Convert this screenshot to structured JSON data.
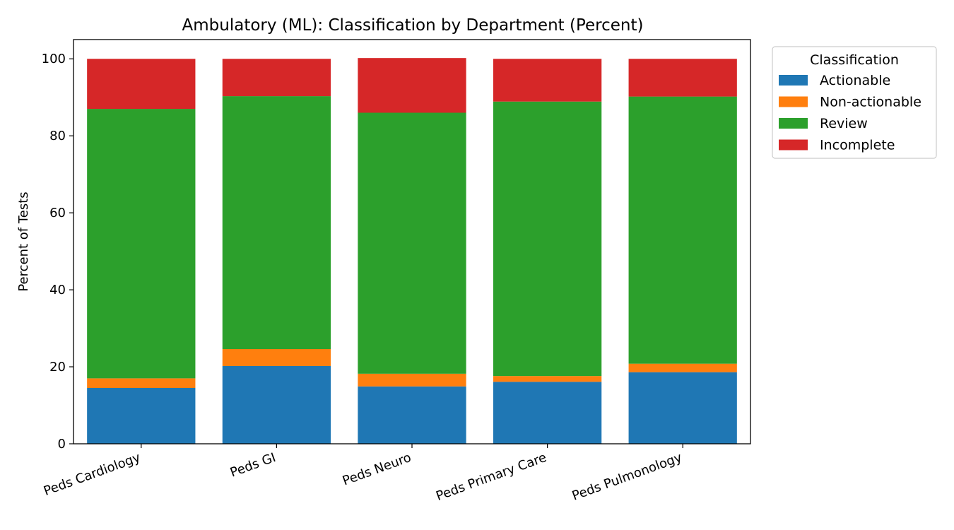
{
  "chart_data": {
    "type": "bar",
    "stacked": true,
    "title": "Ambulatory (ML): Classification by Department (Percent)",
    "xlabel": "",
    "ylabel": "Percent of Tests",
    "ylim": [
      0,
      105
    ],
    "yticks": [
      0,
      20,
      40,
      60,
      80,
      100
    ],
    "categories": [
      "Peds Cardiology",
      "Peds GI",
      "Peds Neuro",
      "Peds Primary Care",
      "Peds Pulmonology"
    ],
    "series": [
      {
        "name": "Actionable",
        "color": "#1f77b4",
        "values": [
          14.5,
          20.2,
          14.9,
          16.1,
          18.6
        ]
      },
      {
        "name": "Non-actionable",
        "color": "#ff7f0e",
        "values": [
          2.5,
          4.4,
          3.3,
          1.5,
          2.2
        ]
      },
      {
        "name": "Review",
        "color": "#2ca02c",
        "values": [
          70.0,
          65.7,
          67.8,
          71.3,
          69.4
        ]
      },
      {
        "name": "Incomplete",
        "color": "#d62728",
        "values": [
          13.0,
          9.7,
          14.2,
          11.1,
          9.8
        ]
      }
    ],
    "legend": {
      "title": "Classification",
      "position": "outside-top-right"
    },
    "grid": false
  }
}
